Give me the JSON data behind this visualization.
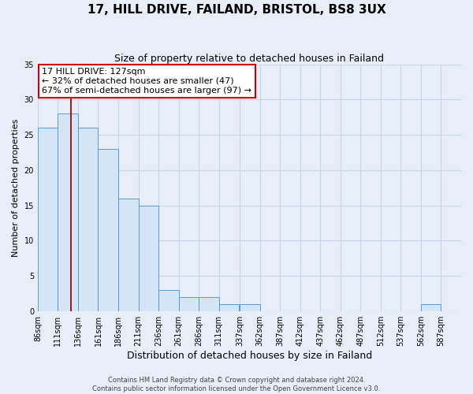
{
  "title": "17, HILL DRIVE, FAILAND, BRISTOL, BS8 3UX",
  "subtitle": "Size of property relative to detached houses in Failand",
  "xlabel": "Distribution of detached houses by size in Failand",
  "ylabel": "Number of detached properties",
  "bar_values": [
    26,
    28,
    26,
    23,
    16,
    15,
    3,
    2,
    2,
    1,
    1,
    0,
    0,
    0,
    0,
    0,
    0,
    0,
    0,
    1,
    0
  ],
  "bin_left_edges": [
    86,
    111,
    136,
    161,
    186,
    211,
    236,
    261,
    286,
    311,
    337,
    362,
    387,
    412,
    437,
    462,
    487,
    512,
    537,
    562,
    587
  ],
  "bin_width": 25,
  "bar_labels": [
    "86sqm",
    "111sqm",
    "136sqm",
    "161sqm",
    "186sqm",
    "211sqm",
    "236sqm",
    "261sqm",
    "286sqm",
    "311sqm",
    "337sqm",
    "362sqm",
    "387sqm",
    "412sqm",
    "437sqm",
    "462sqm",
    "487sqm",
    "512sqm",
    "537sqm",
    "562sqm",
    "587sqm"
  ],
  "bar_fill_color": "#d4e6f5",
  "bar_edge_color": "#5b9bd5",
  "vline_x": 127,
  "vline_color": "#aa0000",
  "ylim": [
    0,
    35
  ],
  "yticks": [
    0,
    5,
    10,
    15,
    20,
    25,
    30,
    35
  ],
  "annotation_title": "17 HILL DRIVE: 127sqm",
  "annotation_line1": "← 32% of detached houses are smaller (47)",
  "annotation_line2": "67% of semi-detached houses are larger (97) →",
  "annotation_box_facecolor": "#ffffff",
  "annotation_box_edgecolor": "#cc0000",
  "footer_line1": "Contains HM Land Registry data © Crown copyright and database right 2024.",
  "footer_line2": "Contains public sector information licensed under the Open Government Licence v3.0.",
  "bg_color": "#e8eef8",
  "grid_color": "#c8d4e8",
  "title_fontsize": 11,
  "subtitle_fontsize": 9,
  "xlabel_fontsize": 9,
  "ylabel_fontsize": 8,
  "tick_fontsize": 7,
  "annotation_fontsize": 8,
  "footer_fontsize": 6
}
